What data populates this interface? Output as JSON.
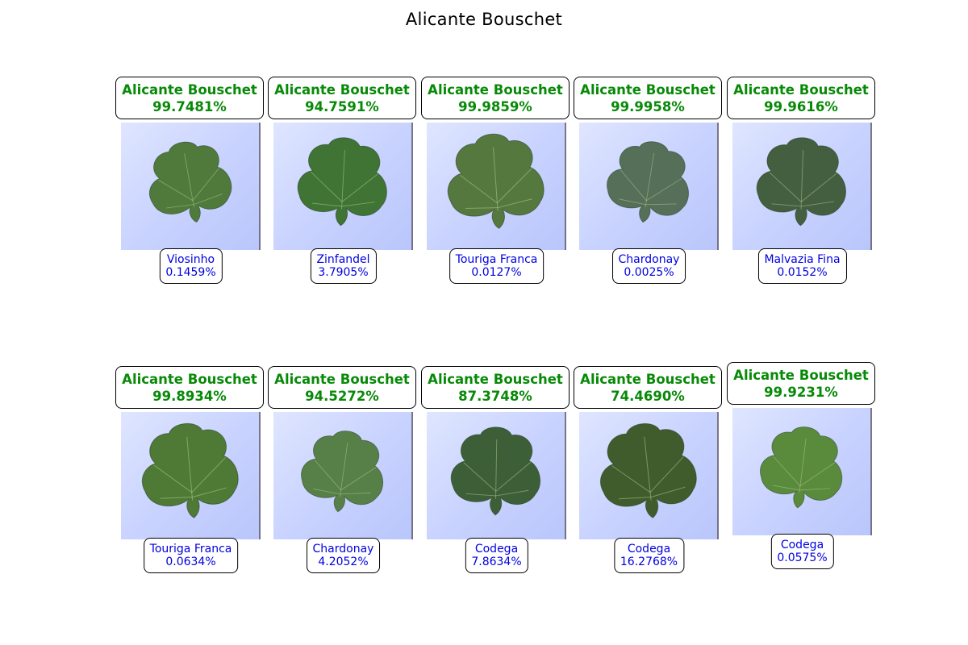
{
  "figure": {
    "title": "Alicante Bouschet"
  },
  "rows": [
    [
      {
        "top_label": "Alicante Bouschet",
        "top_pct": "99.7481%",
        "alt_label": "Viosinho",
        "alt_pct": "0.1459%",
        "leaf_color": "#4f7a3c"
      },
      {
        "top_label": "Alicante Bouschet",
        "top_pct": "94.7591%",
        "alt_label": "Zinfandel",
        "alt_pct": "3.7905%",
        "leaf_color": "#3f7434"
      },
      {
        "top_label": "Alicante Bouschet",
        "top_pct": "99.9859%",
        "alt_label": "Touriga Franca",
        "alt_pct": "0.0127%",
        "leaf_color": "#55783f"
      },
      {
        "top_label": "Alicante Bouschet",
        "top_pct": "99.9958%",
        "alt_label": "Chardonay",
        "alt_pct": "0.0025%",
        "leaf_color": "#556f58"
      },
      {
        "top_label": "Alicante Bouschet",
        "top_pct": "99.9616%",
        "alt_label": "Malvazia Fina",
        "alt_pct": "0.0152%",
        "leaf_color": "#435f40"
      }
    ],
    [
      {
        "top_label": "Alicante Bouschet",
        "top_pct": "99.8934%",
        "alt_label": "Touriga Franca",
        "alt_pct": "0.0634%",
        "leaf_color": "#4e7a36"
      },
      {
        "top_label": "Alicante Bouschet",
        "top_pct": "94.5272%",
        "alt_label": "Chardonay",
        "alt_pct": "4.2052%",
        "leaf_color": "#577f48"
      },
      {
        "top_label": "Alicante Bouschet",
        "top_pct": "87.3748%",
        "alt_label": "Codega",
        "alt_pct": "7.8634%",
        "leaf_color": "#3d5f38"
      },
      {
        "top_label": "Alicante Bouschet",
        "top_pct": "74.4690%",
        "alt_label": "Codega",
        "alt_pct": "16.2768%",
        "leaf_color": "#415c2c"
      },
      {
        "top_label": "Alicante Bouschet",
        "top_pct": "99.9231%",
        "alt_label": "Codega",
        "alt_pct": "0.0575%",
        "leaf_color": "#5a8a3c"
      }
    ]
  ]
}
